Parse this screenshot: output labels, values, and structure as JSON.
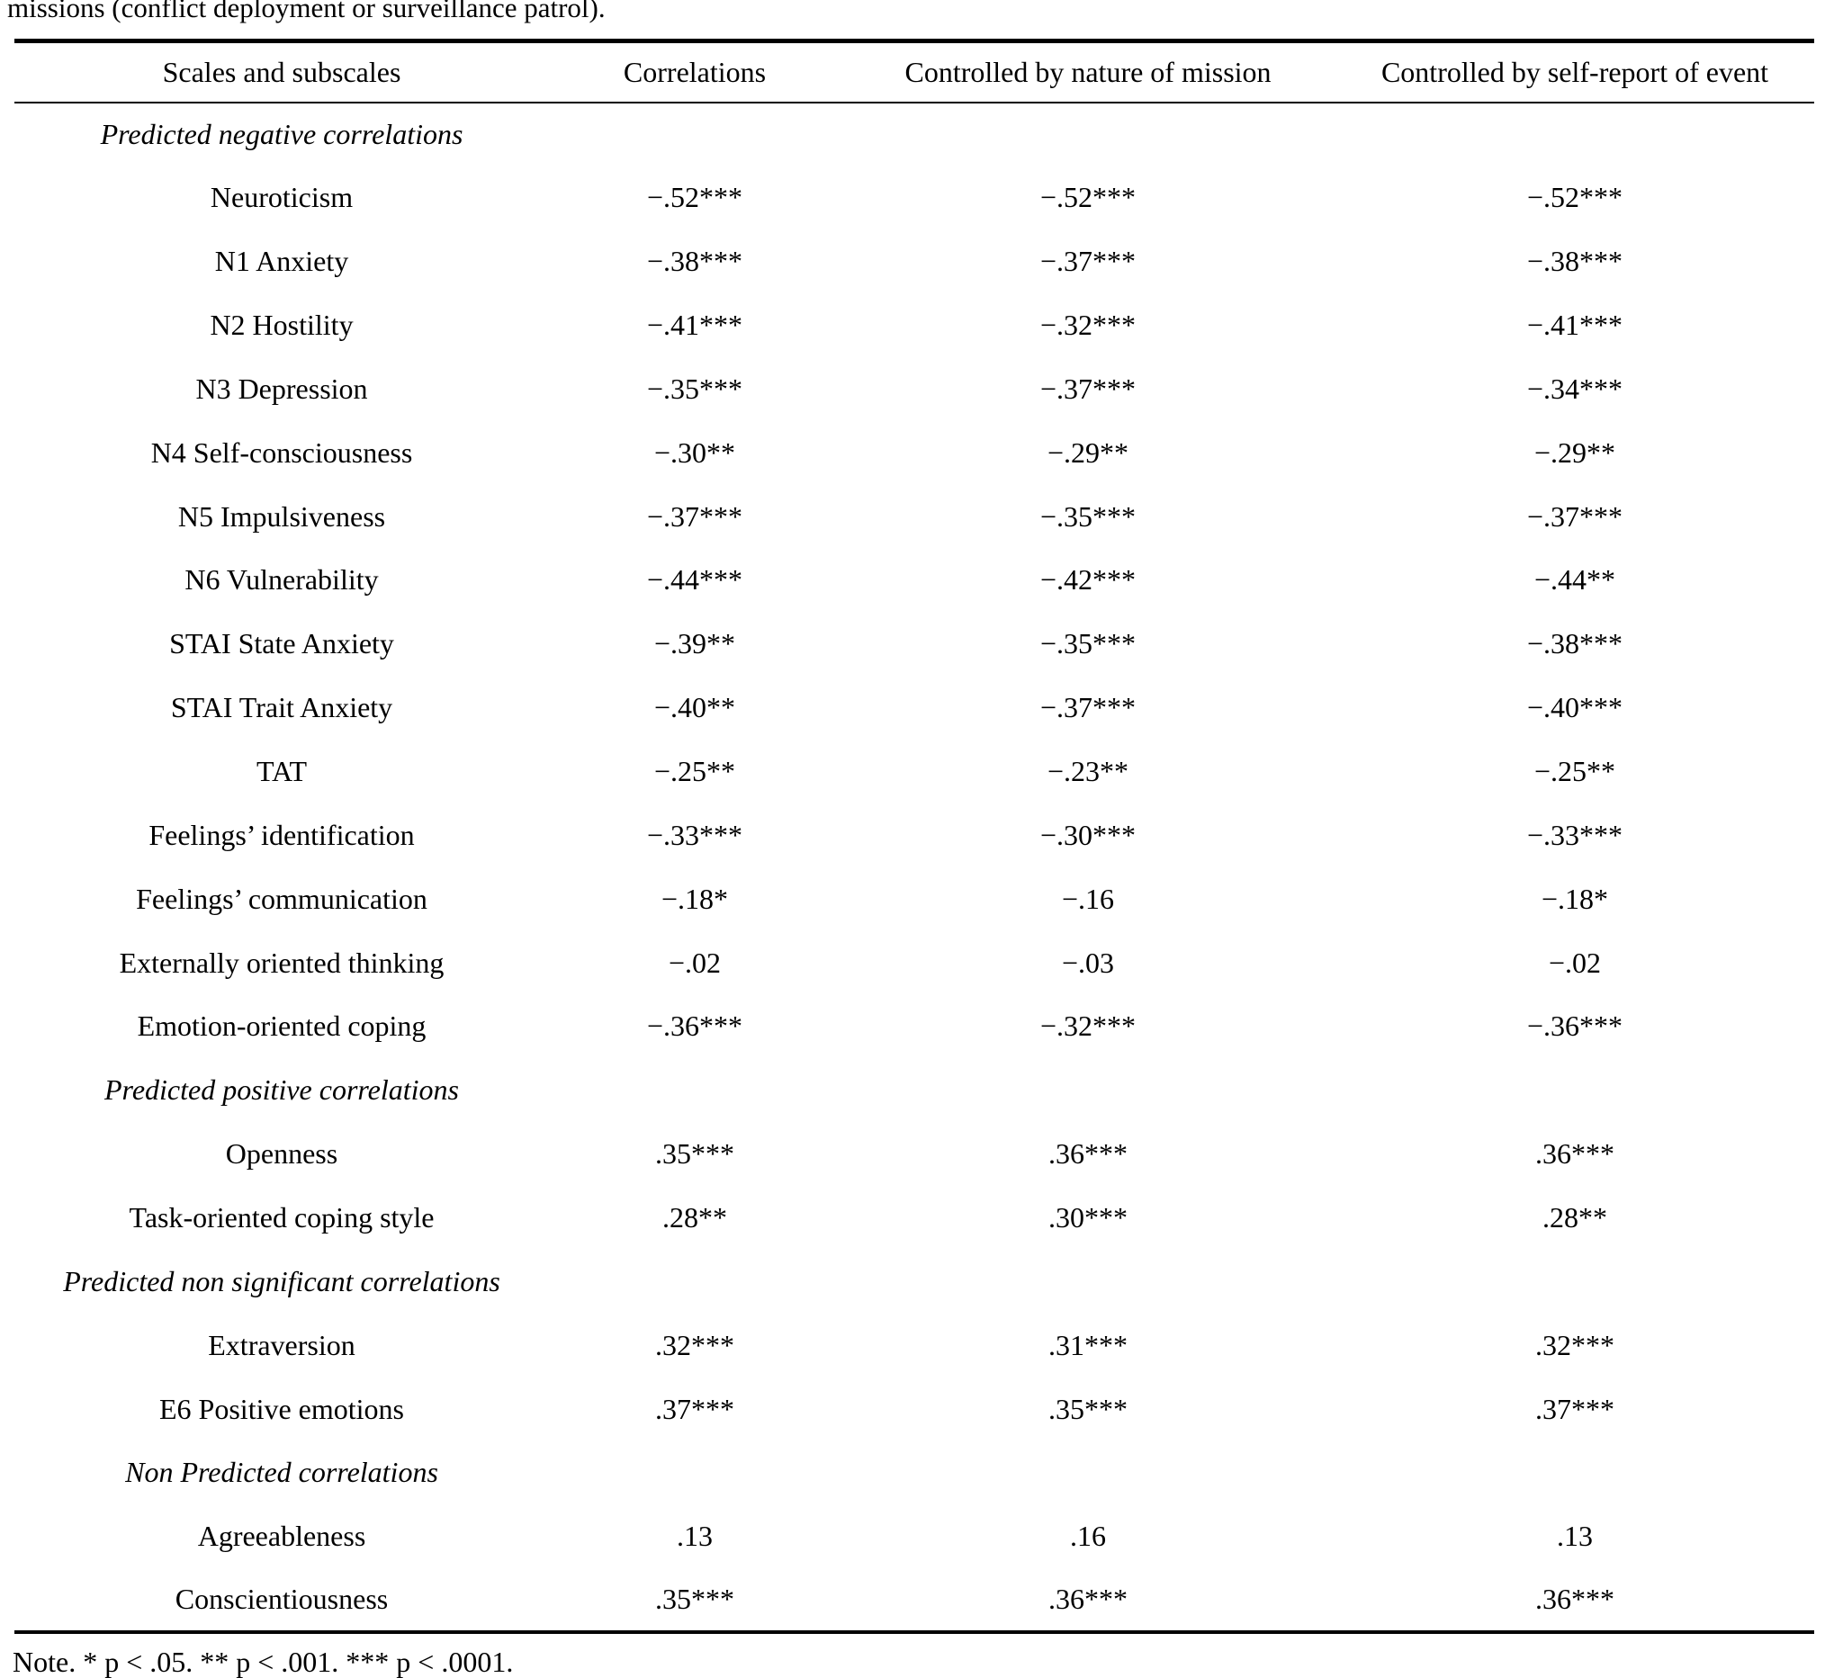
{
  "colors": {
    "background": "#ffffff",
    "text": "#000000",
    "rule": "#000000"
  },
  "caption_fragment": "missions (conflict deployment or surveillance patrol).",
  "table": {
    "columns": [
      "Scales and subscales",
      "Correlations",
      "Controlled by nature of mission",
      "Controlled by self-report of event"
    ],
    "sections": [
      {
        "label": "Predicted negative correlations",
        "rows": [
          [
            "Neuroticism",
            "−.52***",
            "−.52***",
            "−.52***"
          ],
          [
            "N1 Anxiety",
            "−.38***",
            "−.37***",
            "−.38***"
          ],
          [
            "N2 Hostility",
            "−.41***",
            "−.32***",
            "−.41***"
          ],
          [
            "N3 Depression",
            "−.35***",
            "−.37***",
            "−.34***"
          ],
          [
            "N4 Self-consciousness",
            "−.30**",
            "−.29**",
            "−.29**"
          ],
          [
            "N5 Impulsiveness",
            "−.37***",
            "−.35***",
            "−.37***"
          ],
          [
            "N6 Vulnerability",
            "−.44***",
            "−.42***",
            "−.44**"
          ],
          [
            "STAI State Anxiety",
            "−.39**",
            "−.35***",
            "−.38***"
          ],
          [
            "STAI Trait Anxiety",
            "−.40**",
            "−.37***",
            "−.40***"
          ],
          [
            "TAT",
            "−.25**",
            "−.23**",
            "−.25**"
          ],
          [
            "Feelings’ identification",
            "−.33***",
            "−.30***",
            "−.33***"
          ],
          [
            "Feelings’ communication",
            "−.18*",
            "−.16",
            "−.18*"
          ],
          [
            "Externally oriented thinking",
            "−.02",
            "−.03",
            "−.02"
          ],
          [
            "Emotion-oriented coping",
            "−.36***",
            "−.32***",
            "−.36***"
          ]
        ]
      },
      {
        "label": "Predicted positive correlations",
        "rows": [
          [
            "Openness",
            ".35***",
            ".36***",
            ".36***"
          ],
          [
            "Task-oriented coping style",
            ".28**",
            ".30***",
            ".28**"
          ]
        ]
      },
      {
        "label": "Predicted non significant correlations",
        "rows": [
          [
            "Extraversion",
            ".32***",
            ".31***",
            ".32***"
          ],
          [
            "E6 Positive emotions",
            ".37***",
            ".35***",
            ".37***"
          ]
        ]
      },
      {
        "label": "Non Predicted correlations",
        "rows": [
          [
            "Agreeableness",
            ".13",
            ".16",
            ".13"
          ],
          [
            "Conscientiousness",
            ".35***",
            ".36***",
            ".36***"
          ]
        ]
      }
    ]
  },
  "note": "Note. * p < .05. ** p < .001. *** p < .0001."
}
